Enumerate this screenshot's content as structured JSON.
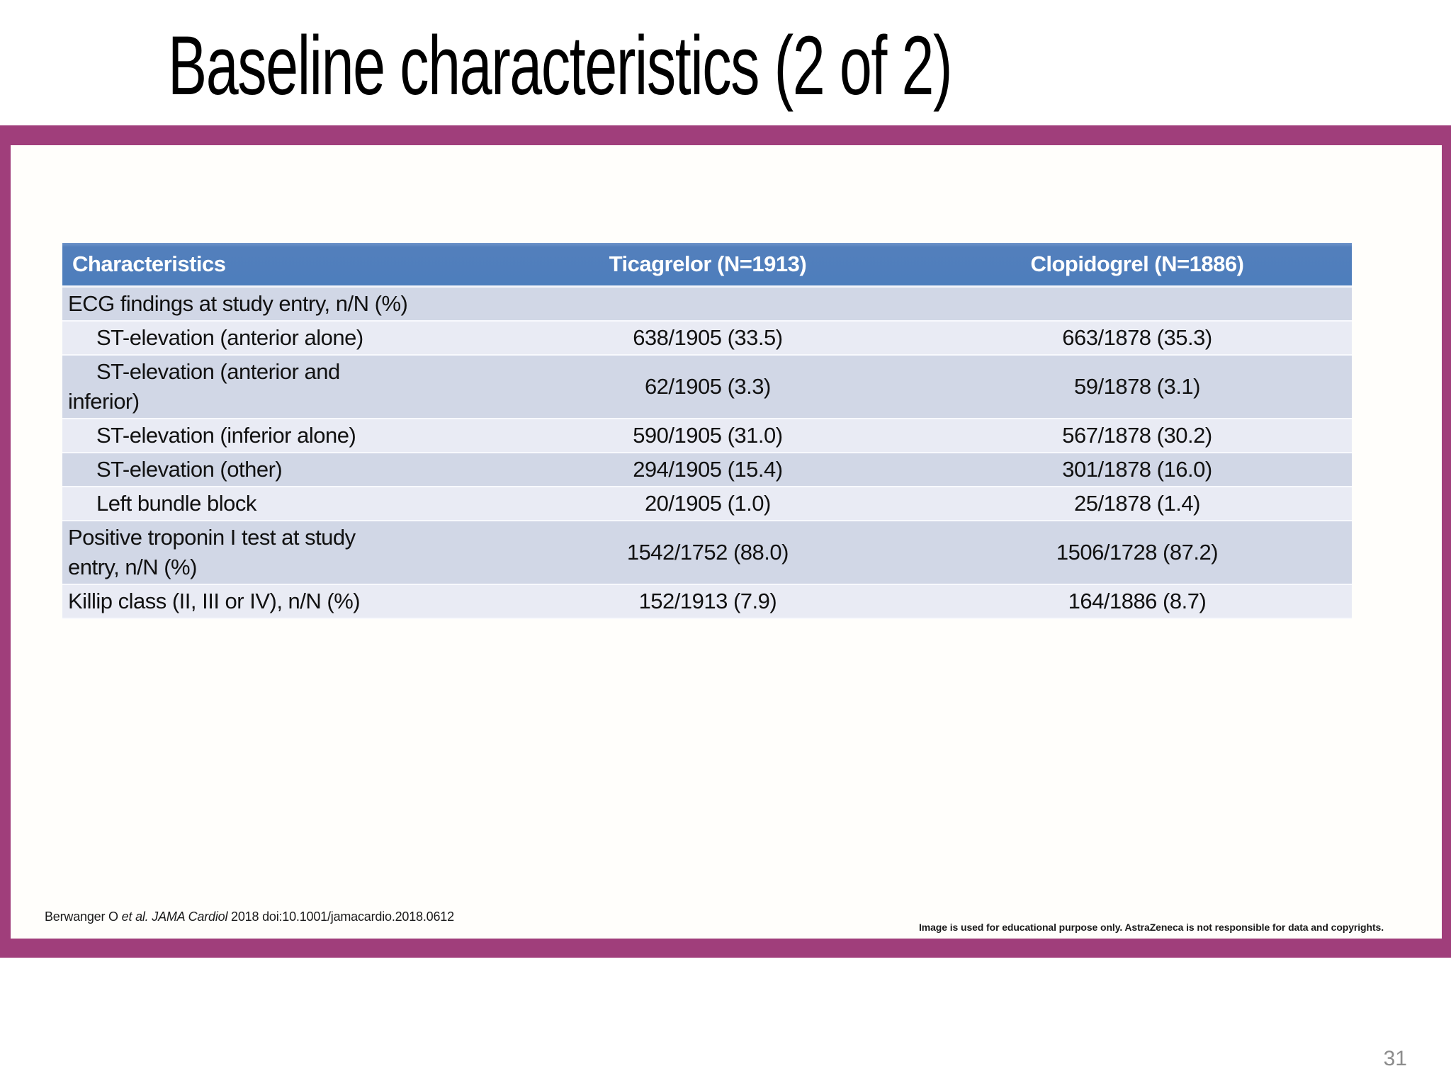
{
  "slide": {
    "title": "Baseline characteristics (2 of 2)",
    "page_number": "31",
    "colors": {
      "frame_accent": "#a03e7b",
      "table_header_bg": "#4d7ebc",
      "table_header_text": "#ffffff",
      "row_stripe_dark": "#d1d7e6",
      "row_stripe_light": "#e9ebf4",
      "title_text": "#000000",
      "page_number_text": "#8c8c8c"
    }
  },
  "table": {
    "headers": [
      "Characteristics",
      "Ticagrelor (N=1913)",
      "Clopidogrel (N=1886)"
    ],
    "rows": [
      {
        "label": "ECG findings at study entry, n/N (%)",
        "indent": false,
        "ticagrelor": "",
        "clopidogrel": ""
      },
      {
        "label": "ST-elevation (anterior alone)",
        "indent": true,
        "ticagrelor": "638/1905 (33.5)",
        "clopidogrel": "663/1878 (35.3)"
      },
      {
        "label": "ST-elevation (anterior and\ninferior)",
        "indent": true,
        "ticagrelor": "62/1905 (3.3)",
        "clopidogrel": "59/1878 (3.1)"
      },
      {
        "label": "ST-elevation (inferior alone)",
        "indent": true,
        "ticagrelor": "590/1905 (31.0)",
        "clopidogrel": "567/1878 (30.2)"
      },
      {
        "label": "ST-elevation (other)",
        "indent": true,
        "ticagrelor": "294/1905 (15.4)",
        "clopidogrel": "301/1878 (16.0)"
      },
      {
        "label": "Left bundle block",
        "indent": true,
        "ticagrelor": "20/1905 (1.0)",
        "clopidogrel": "25/1878 (1.4)"
      },
      {
        "label": "Positive troponin I test at study\nentry, n/N (%)",
        "indent": false,
        "ticagrelor": "1542/1752 (88.0)",
        "clopidogrel": "1506/1728 (87.2)"
      },
      {
        "label": "Killip class (II, III or IV), n/N (%)",
        "indent": false,
        "ticagrelor": "152/1913 (7.9)",
        "clopidogrel": "164/1886 (8.7)"
      }
    ]
  },
  "footer": {
    "citation_prefix": "Berwanger O ",
    "citation_italic": "et al. JAMA Cardiol ",
    "citation_suffix": "2018 doi:10.1001/jamacardio.2018.0612",
    "disclaimer": "Image is used for educational purpose only. AstraZeneca is not responsible for data and copyrights."
  }
}
